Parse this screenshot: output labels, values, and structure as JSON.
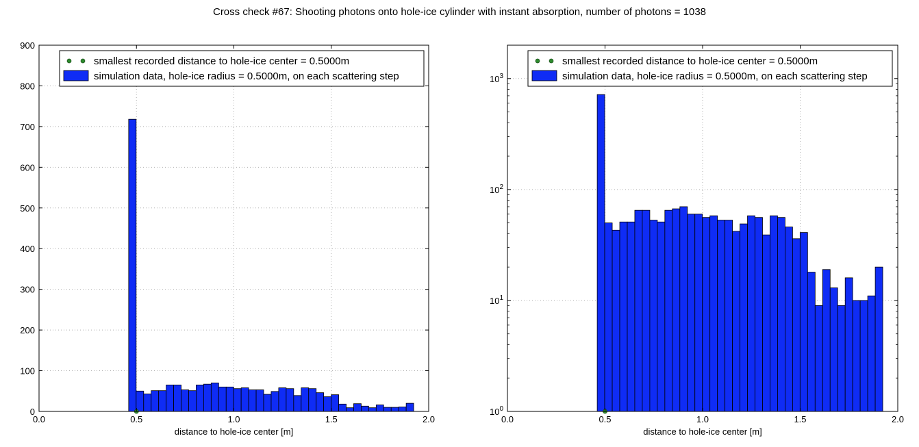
{
  "figure_title": "Cross check #67: Shooting photons onto hole-ice cylinder with instant absorption, number of photons = 1038",
  "colors": {
    "bar": "#0f2cf5",
    "bar_edge": "#000000",
    "dot": "#2e8b2e",
    "grid": "#b0b0b0"
  },
  "chart_data": [
    {
      "type": "bar",
      "yscale": "linear",
      "xlabel": "distance to hole-ice center [m]",
      "ylabel": "",
      "xlim": [
        0.0,
        2.0
      ],
      "ylim": [
        0,
        900
      ],
      "xticks": [
        0.0,
        0.5,
        1.0,
        1.5,
        2.0
      ],
      "xtick_labels": [
        "0.0",
        "0.5",
        "1.0",
        "1.5",
        "2.0"
      ],
      "yticks": [
        0,
        100,
        200,
        300,
        400,
        500,
        600,
        700,
        800,
        900
      ],
      "ytick_labels": [
        "0",
        "100",
        "200",
        "300",
        "400",
        "500",
        "600",
        "700",
        "800",
        "900"
      ],
      "grid": true,
      "legend_position": "top",
      "legend": [
        "smallest recorded distance to hole-ice center = 0.5000m",
        "simulation data, hole-ice radius = 0.5000m, on each scattering step"
      ],
      "bin_start": 0.46,
      "bin_width": 0.0385,
      "values": [
        718,
        50,
        43,
        51,
        51,
        65,
        65,
        53,
        51,
        65,
        67,
        70,
        60,
        60,
        56,
        58,
        53,
        53,
        42,
        49,
        58,
        56,
        39,
        58,
        56,
        46,
        36,
        41,
        18,
        9,
        19,
        13,
        9,
        16,
        10,
        10,
        11,
        20
      ],
      "marker_point": {
        "x": 0.5,
        "y": 0
      }
    },
    {
      "type": "bar",
      "yscale": "log",
      "xlabel": "distance to hole-ice center [m]",
      "ylabel": "",
      "xlim": [
        0.0,
        2.0
      ],
      "ylim": [
        1,
        2000
      ],
      "xticks": [
        0.0,
        0.5,
        1.0,
        1.5,
        2.0
      ],
      "xtick_labels": [
        "0.0",
        "0.5",
        "1.0",
        "1.5",
        "2.0"
      ],
      "yticks": [
        1,
        10,
        100,
        1000
      ],
      "ytick_bases": [
        "10",
        "10",
        "10",
        "10"
      ],
      "ytick_exps": [
        "0",
        "1",
        "2",
        "3"
      ],
      "grid": true,
      "legend_position": "top",
      "legend": [
        "smallest recorded distance to hole-ice center = 0.5000m",
        "simulation data, hole-ice radius = 0.5000m, on each scattering step"
      ],
      "bin_start": 0.46,
      "bin_width": 0.0385,
      "values": [
        718,
        50,
        43,
        51,
        51,
        65,
        65,
        53,
        51,
        65,
        67,
        70,
        60,
        60,
        56,
        58,
        53,
        53,
        42,
        49,
        58,
        56,
        39,
        58,
        56,
        46,
        36,
        41,
        18,
        9,
        19,
        13,
        9,
        16,
        10,
        10,
        11,
        20
      ],
      "marker_point": {
        "x": 0.5,
        "y": 1
      }
    }
  ]
}
